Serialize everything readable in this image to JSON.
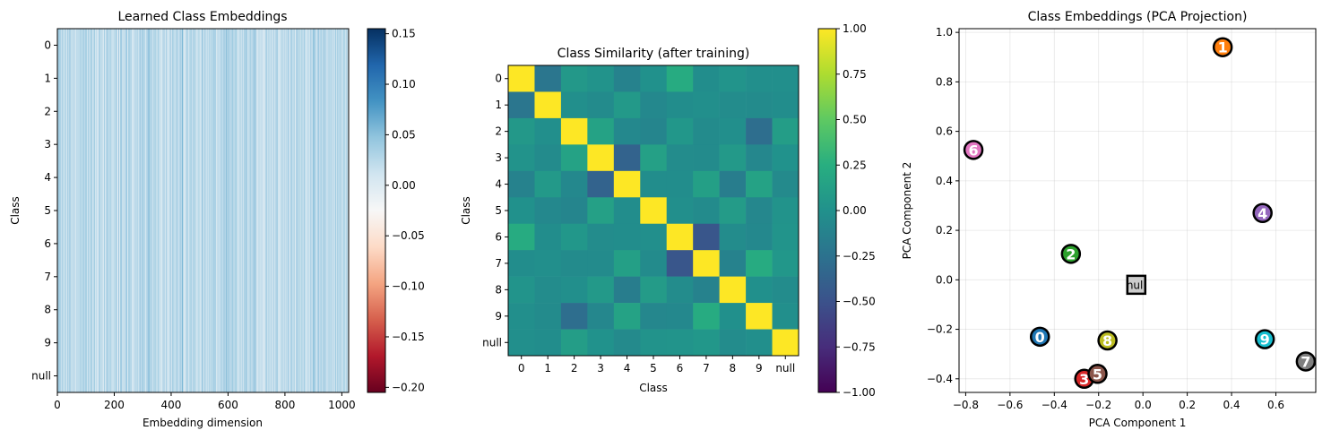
{
  "chart_data": [
    {
      "type": "heatmap",
      "title": "Learned Class Embeddings",
      "xlabel": "Embedding dimension",
      "ylabel": "Class",
      "rows": [
        "0",
        "1",
        "2",
        "3",
        "4",
        "5",
        "6",
        "7",
        "8",
        "9",
        "null"
      ],
      "xlim": [
        0,
        1024
      ],
      "xticks": [
        0,
        200,
        400,
        600,
        800,
        1000
      ],
      "xtick_labels": [
        "0",
        "200",
        "400",
        "600",
        "800",
        "1000"
      ],
      "colormap": "RdBu",
      "value_range": [
        -0.205,
        0.155
      ],
      "colorbar_ticks": [
        0.15,
        0.1,
        0.05,
        0.0,
        -0.05,
        -0.1,
        -0.15,
        -0.2
      ],
      "colorbar_tick_labels": [
        "0.15",
        "0.10",
        "0.05",
        "0.00",
        "−0.05",
        "−0.10",
        "−0.15",
        "−0.20"
      ],
      "note": "1024 embedding values per class; mostly near 0–0.05"
    },
    {
      "type": "heatmap",
      "title": "Class Similarity (after training)",
      "xlabel": "Class",
      "ylabel": "Class",
      "categories": [
        "0",
        "1",
        "2",
        "3",
        "4",
        "5",
        "6",
        "7",
        "8",
        "9",
        "null"
      ],
      "colormap": "viridis",
      "value_range": [
        -1.0,
        1.0
      ],
      "colorbar_ticks": [
        1.0,
        0.75,
        0.5,
        0.25,
        0.0,
        -0.25,
        -0.5,
        -0.75,
        -1.0
      ],
      "colorbar_tick_labels": [
        "1.00",
        "0.75",
        "0.50",
        "0.25",
        "0.00",
        "−0.25",
        "−0.50",
        "−0.75",
        "−1.00"
      ],
      "matrix": [
        [
          1.0,
          -0.22,
          0.06,
          0.02,
          -0.12,
          0.0,
          0.22,
          -0.03,
          0.03,
          -0.02,
          -0.02
        ],
        [
          -0.22,
          1.0,
          -0.02,
          -0.05,
          0.07,
          -0.07,
          -0.03,
          -0.02,
          -0.04,
          -0.05,
          -0.03
        ],
        [
          0.06,
          -0.02,
          1.0,
          0.15,
          -0.07,
          -0.1,
          0.05,
          -0.05,
          -0.02,
          -0.28,
          0.1
        ],
        [
          0.02,
          -0.05,
          0.15,
          1.0,
          -0.37,
          0.13,
          -0.04,
          -0.05,
          0.07,
          -0.08,
          0.01
        ],
        [
          -0.12,
          0.07,
          -0.07,
          -0.37,
          1.0,
          -0.03,
          -0.03,
          0.12,
          -0.16,
          0.15,
          -0.06
        ],
        [
          0.0,
          -0.07,
          -0.1,
          0.13,
          -0.03,
          1.0,
          -0.02,
          -0.05,
          0.09,
          -0.08,
          0.02
        ],
        [
          0.22,
          -0.03,
          0.05,
          -0.04,
          -0.03,
          -0.02,
          1.0,
          -0.47,
          -0.04,
          -0.07,
          0.03
        ],
        [
          -0.03,
          -0.02,
          -0.05,
          -0.05,
          0.12,
          -0.05,
          -0.47,
          1.0,
          -0.12,
          0.22,
          0.05
        ],
        [
          0.03,
          -0.04,
          -0.02,
          0.07,
          -0.16,
          0.09,
          -0.04,
          -0.12,
          1.0,
          -0.01,
          -0.04
        ],
        [
          -0.02,
          -0.05,
          -0.28,
          -0.08,
          0.15,
          -0.08,
          -0.07,
          0.22,
          -0.01,
          1.0,
          -0.02
        ],
        [
          -0.02,
          -0.03,
          0.1,
          0.01,
          -0.06,
          0.02,
          0.03,
          0.05,
          -0.04,
          -0.02,
          1.0
        ]
      ]
    },
    {
      "type": "scatter",
      "title": "Class Embeddings (PCA Projection)",
      "xlabel": "PCA Component 1",
      "ylabel": "PCA Component 2",
      "xlim": [
        -0.83,
        0.78
      ],
      "ylim": [
        -0.455,
        1.015
      ],
      "xticks": [
        -0.8,
        -0.6,
        -0.4,
        -0.2,
        0.0,
        0.2,
        0.4,
        0.6
      ],
      "xtick_labels": [
        "−0.8",
        "−0.6",
        "−0.4",
        "−0.2",
        "0.0",
        "0.2",
        "0.4",
        "0.6"
      ],
      "yticks": [
        -0.4,
        -0.2,
        0.0,
        0.2,
        0.4,
        0.6,
        0.8,
        1.0
      ],
      "ytick_labels": [
        "−0.4",
        "−0.2",
        "0.0",
        "0.2",
        "0.4",
        "0.6",
        "0.8",
        "1.0"
      ],
      "grid": true,
      "points": [
        {
          "label": "0",
          "x": -0.465,
          "y": -0.23,
          "color": "#1f77b4",
          "marker": "circle"
        },
        {
          "label": "1",
          "x": 0.36,
          "y": 0.94,
          "color": "#ff7f0e",
          "marker": "circle"
        },
        {
          "label": "2",
          "x": -0.325,
          "y": 0.105,
          "color": "#2ca02c",
          "marker": "circle"
        },
        {
          "label": "3",
          "x": -0.265,
          "y": -0.4,
          "color": "#d62728",
          "marker": "circle"
        },
        {
          "label": "4",
          "x": 0.54,
          "y": 0.27,
          "color": "#9467bd",
          "marker": "circle"
        },
        {
          "label": "5",
          "x": -0.205,
          "y": -0.38,
          "color": "#8c564b",
          "marker": "circle"
        },
        {
          "label": "6",
          "x": -0.765,
          "y": 0.525,
          "color": "#e377c2",
          "marker": "circle"
        },
        {
          "label": "7",
          "x": 0.735,
          "y": -0.33,
          "color": "#7f7f7f",
          "marker": "circle"
        },
        {
          "label": "8",
          "x": -0.16,
          "y": -0.245,
          "color": "#bcbd22",
          "marker": "circle"
        },
        {
          "label": "9",
          "x": 0.55,
          "y": -0.24,
          "color": "#17becf",
          "marker": "circle"
        },
        {
          "label": "null",
          "x": -0.03,
          "y": -0.02,
          "color": "#cccccc",
          "marker": "square"
        }
      ]
    }
  ]
}
